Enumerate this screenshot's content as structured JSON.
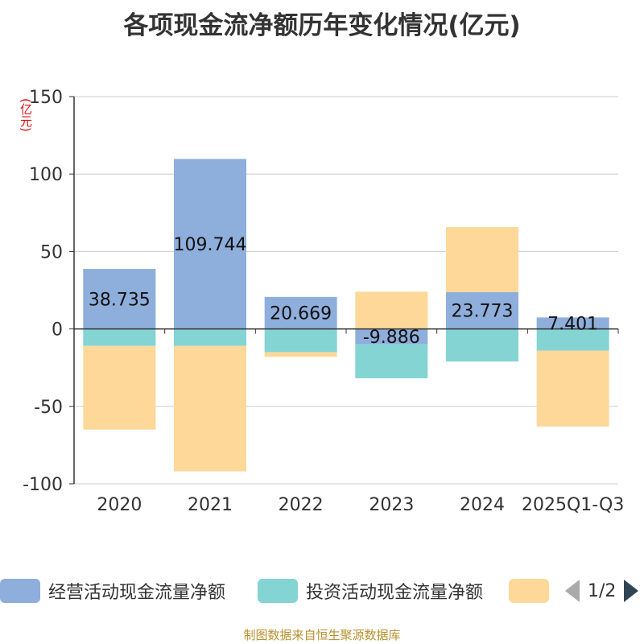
{
  "title": "各项现金流净额历年变化情况(亿元)",
  "unit_label": "(亿元)",
  "footer": "制图数据来自恒生聚源数据库",
  "colors": {
    "operating": "#8eaedb",
    "investing": "#84d4d4",
    "financing": "#fed899",
    "axis": "#333333",
    "grid": "#cccccc"
  },
  "legend": {
    "items": [
      {
        "label": "经营活动现金流量净额",
        "color": "#8eaedb"
      },
      {
        "label": "投资活动现金流量净额",
        "color": "#84d4d4"
      },
      {
        "label": "",
        "color": "#fed899"
      }
    ],
    "page": "1/2"
  },
  "chart_data": {
    "type": "bar",
    "stacked": true,
    "categories": [
      "2020",
      "2021",
      "2022",
      "2023",
      "2024",
      "2025Q1-Q3"
    ],
    "ylim": [
      -100,
      150
    ],
    "yticks": [
      "150",
      "100",
      "50",
      "0",
      "-50",
      "-100"
    ],
    "grid": true,
    "legend_position": "bottom",
    "series": [
      {
        "name": "经营活动现金流量净额",
        "values": [
          38.735,
          109.744,
          20.669,
          -9.886,
          23.773,
          7.401
        ],
        "labels": [
          "38.735",
          "109.744",
          "20.669",
          "-9.886",
          "23.773",
          "7.401"
        ]
      },
      {
        "name": "投资活动现金流量净额",
        "values": [
          -11,
          -11,
          -15,
          -22,
          -21,
          -14
        ]
      },
      {
        "values": [
          -54,
          -81,
          -3,
          24,
          42,
          -49
        ]
      }
    ]
  }
}
